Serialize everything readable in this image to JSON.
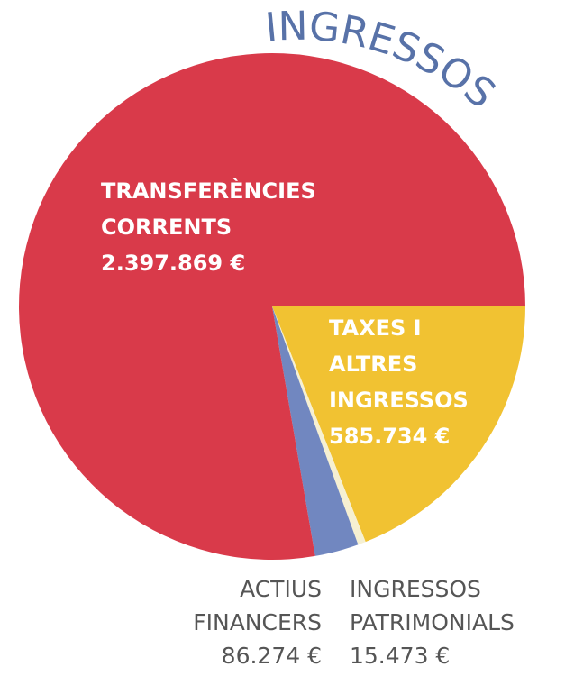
{
  "chart_data": {
    "type": "pie",
    "title": "INGRESSOS",
    "categories": [
      [
        "TAXES I",
        "ALTRES",
        "INGRESSOS"
      ],
      [
        "INGRESSOS",
        "PATRIMONIALS"
      ],
      [
        "ACTIUS",
        "FINANCERS"
      ],
      [
        "TRANSFERÈNCIES",
        "CORRENTS"
      ]
    ],
    "values": [
      585734,
      15473,
      86274,
      2397869
    ],
    "value_labels": [
      "585.734 €",
      "15.473 €",
      "86.274 €",
      "2.397.869 €"
    ],
    "colors": [
      "#f1c232",
      "#f6f0d2",
      "#7187c0",
      "#d93a4a"
    ]
  }
}
